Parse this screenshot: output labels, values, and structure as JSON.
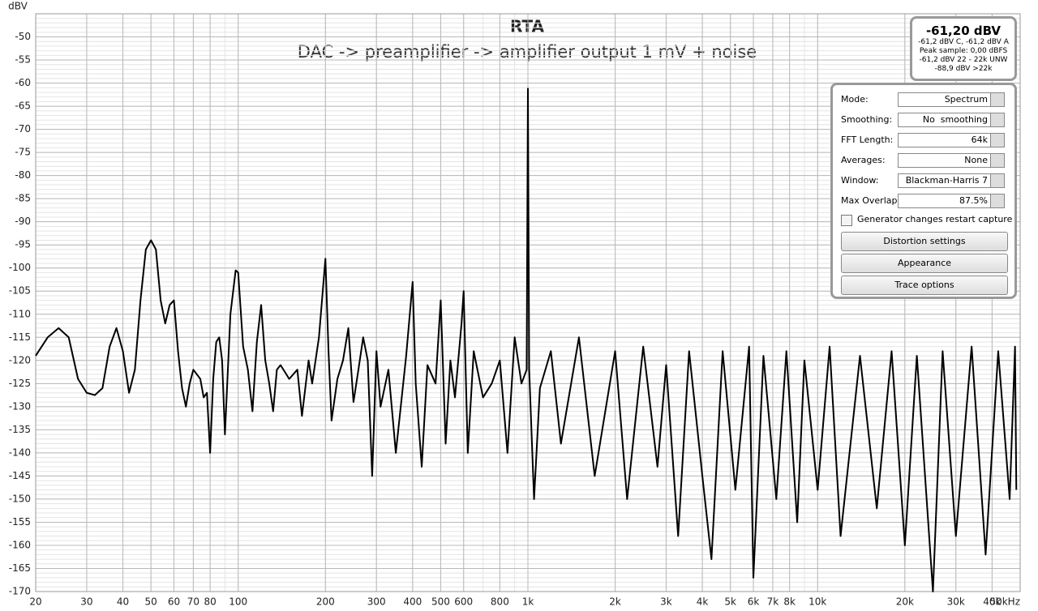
{
  "chart_data": {
    "type": "line",
    "title": "RTA",
    "subtitle": "DAC -> preamplifier -> amplifier output 1 mV + noise",
    "y_label": "dBV",
    "log_x": true,
    "grid": true,
    "xlim": [
      20,
      50000
    ],
    "ylim": [
      -170,
      -45
    ],
    "xticks": [
      20,
      30,
      40,
      50,
      60,
      70,
      80,
      100,
      200,
      300,
      400,
      500,
      600,
      800,
      {
        "value": 1000,
        "label": "1k"
      },
      {
        "value": 2000,
        "label": "2k"
      },
      {
        "value": 3000,
        "label": "3k"
      },
      {
        "value": 4000,
        "label": "4k"
      },
      {
        "value": 5000,
        "label": "5k"
      },
      {
        "value": 6000,
        "label": "6k"
      },
      {
        "value": 7000,
        "label": "7k"
      },
      {
        "value": 8000,
        "label": "8k"
      },
      {
        "value": 10000,
        "label": "10k"
      },
      {
        "value": 20000,
        "label": "20k"
      },
      {
        "value": 30000,
        "label": "30k"
      },
      {
        "value": 40000,
        "label": "40k"
      },
      {
        "value": 50000,
        "label": "50kHz"
      }
    ],
    "yticks": [
      -50,
      -55,
      -60,
      -65,
      -70,
      -75,
      -80,
      -85,
      -90,
      -95,
      -100,
      -105,
      -110,
      -115,
      -120,
      -125,
      -130,
      -135,
      -140,
      -145,
      -150,
      -155,
      -160,
      -165,
      -170
    ],
    "series": [
      {
        "color": "#000000",
        "x": [
          20,
          22,
          24,
          26,
          28,
          30,
          32,
          34,
          36,
          38,
          40,
          42,
          44,
          46,
          48,
          50,
          52,
          54,
          56,
          58,
          60,
          62,
          64,
          66,
          68,
          70,
          74,
          76,
          78,
          80,
          82,
          84,
          86,
          88,
          90,
          94,
          98,
          100,
          104,
          108,
          112,
          116,
          120,
          124,
          128,
          132,
          136,
          140,
          150,
          160,
          166,
          175,
          180,
          190,
          200,
          205,
          210,
          220,
          230,
          240,
          250,
          260,
          270,
          280,
          290,
          300,
          310,
          330,
          350,
          380,
          400,
          410,
          430,
          450,
          480,
          500,
          520,
          540,
          560,
          590,
          600,
          620,
          650,
          700,
          750,
          800,
          850,
          900,
          950,
          990,
          1000,
          1010,
          1050,
          1100,
          1200,
          1300,
          1500,
          1700,
          2000,
          2200,
          2500,
          2800,
          3000,
          3300,
          3600,
          4000,
          4300,
          4700,
          5200,
          5800,
          6000,
          6500,
          7200,
          7800,
          8500,
          9000,
          10000,
          11000,
          12000,
          14000,
          16000,
          18000,
          20000,
          22000,
          25000,
          27000,
          30000,
          34000,
          38000,
          42000,
          46000,
          48000,
          48500
        ],
        "values": [
          -119,
          -115,
          -113,
          -115,
          -124,
          -127,
          -127.5,
          -126,
          -117,
          -113,
          -118,
          -127,
          -122,
          -107,
          -96,
          -94,
          -96,
          -107,
          -112,
          -108,
          -107,
          -118,
          -126,
          -130,
          -125,
          -122,
          -124,
          -128,
          -127,
          -140,
          -124,
          -116,
          -115,
          -120,
          -136,
          -110,
          -100.5,
          -101,
          -117,
          -122,
          -131,
          -116,
          -108,
          -120,
          -125,
          -131,
          -122,
          -121,
          -124,
          -122,
          -132,
          -120,
          -125,
          -115,
          -98,
          -118,
          -133,
          -124,
          -120,
          -113,
          -129,
          -122,
          -115,
          -120,
          -145,
          -118,
          -130,
          -122,
          -140,
          -119,
          -103,
          -125,
          -143,
          -121,
          -125,
          -107,
          -138,
          -120,
          -128,
          -112,
          -105,
          -140,
          -118,
          -128,
          -125,
          -120,
          -140,
          -115,
          -125,
          -122,
          -61.2,
          -122,
          -150,
          -126,
          -118,
          -138,
          -115,
          -145,
          -118,
          -150,
          -117,
          -143,
          -121,
          -158,
          -118,
          -145,
          -163,
          -118,
          -148,
          -117,
          -167,
          -119,
          -150,
          -118,
          -155,
          -120,
          -148,
          -117,
          -158,
          -119,
          -152,
          -118,
          -160,
          -119,
          -170,
          -118,
          -158,
          -117,
          -162,
          -118,
          -150,
          -117,
          -148
        ]
      }
    ]
  },
  "readout": {
    "main": "-61,20 dBV",
    "lines": [
      "-61,2 dBV C, -61,2 dBV A",
      "Peak sample: 0,00 dBFS",
      "-61,2 dBV 22 - 22k UNW",
      "-88,9 dBV >22k"
    ]
  },
  "controls": {
    "rows": [
      {
        "label": "Mode:",
        "value": "Spectrum"
      },
      {
        "label": "Smoothing:",
        "value": "No  smoothing"
      },
      {
        "label": "FFT Length:",
        "value": "64k"
      },
      {
        "label": "Averages:",
        "value": "None"
      },
      {
        "label": "Window:",
        "value": "Blackman-Harris 7"
      },
      {
        "label": "Max Overlap:",
        "value": "87.5%"
      }
    ],
    "checkbox": "Generator changes restart capture",
    "buttons": [
      "Distortion settings",
      "Appearance",
      "Trace options"
    ]
  }
}
